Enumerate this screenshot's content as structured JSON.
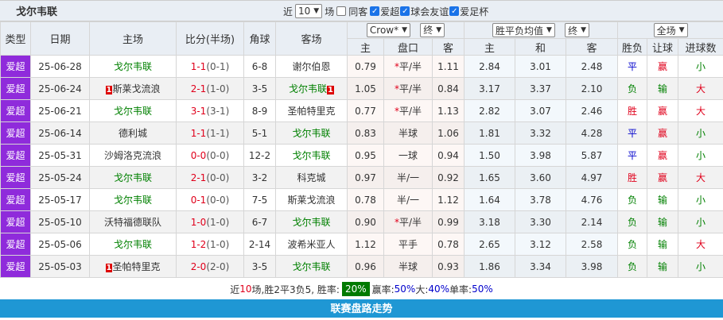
{
  "header": {
    "title": "戈尔韦联",
    "near_label": "近",
    "count": "10",
    "games_label": "场",
    "same_label": "同客",
    "filters": [
      {
        "label": "爱超",
        "checked": true
      },
      {
        "label": "球会友谊",
        "checked": true
      },
      {
        "label": "爱足杯",
        "checked": true
      }
    ]
  },
  "columns": {
    "type": "类型",
    "date": "日期",
    "home": "主场",
    "score": "比分(半场)",
    "corner": "角球",
    "away": "客场",
    "company": "Crow*",
    "odds_phase": "终",
    "avg": "胜平负均值",
    "avg_phase": "终",
    "scope": "全场",
    "ah_home": "主",
    "ah_line": "盘口",
    "ah_away": "客",
    "x_home": "主",
    "x_draw": "和",
    "x_away": "客",
    "result": "胜负",
    "handicap": "让球",
    "goals": "进球数"
  },
  "colors": {
    "type_bg": "#8f2bdb",
    "win": "#e0001b",
    "lose": "#008000",
    "draw": "#0000cc",
    "accent_bar": "#1f97d4"
  },
  "rows": [
    {
      "type": "爱超",
      "date": "25-06-28",
      "home": "戈尔韦联",
      "home_hl": true,
      "home_rank": "",
      "score": "1-1",
      "half": "(0-1)",
      "corner": "6-8",
      "away": "谢尔伯恩",
      "away_hl": false,
      "away_rank": "",
      "o1": "0.79",
      "star": true,
      "line": "平/半",
      "o2": "1.11",
      "x1": "2.84",
      "xd": "3.01",
      "x2": "2.48",
      "res": "平",
      "hc": "赢",
      "gl": "小"
    },
    {
      "type": "爱超",
      "date": "25-06-24",
      "home": "斯莱戈流浪",
      "home_hl": false,
      "home_rank": "1",
      "score": "2-1",
      "half": "(1-0)",
      "corner": "3-5",
      "away": "戈尔韦联",
      "away_hl": true,
      "away_rank": "1",
      "o1": "1.05",
      "star": true,
      "line": "平/半",
      "o2": "0.84",
      "x1": "3.17",
      "xd": "3.37",
      "x2": "2.10",
      "res": "负",
      "hc": "输",
      "gl": "大"
    },
    {
      "type": "爱超",
      "date": "25-06-21",
      "home": "戈尔韦联",
      "home_hl": true,
      "home_rank": "",
      "score": "3-1",
      "half": "(3-1)",
      "corner": "8-9",
      "away": "圣帕特里克",
      "away_hl": false,
      "away_rank": "",
      "o1": "0.77",
      "star": true,
      "line": "平/半",
      "o2": "1.13",
      "x1": "2.82",
      "xd": "3.07",
      "x2": "2.46",
      "res": "胜",
      "hc": "赢",
      "gl": "大"
    },
    {
      "type": "爱超",
      "date": "25-06-14",
      "home": "德利城",
      "home_hl": false,
      "home_rank": "",
      "score": "1-1",
      "half": "(1-1)",
      "corner": "5-1",
      "away": "戈尔韦联",
      "away_hl": true,
      "away_rank": "",
      "o1": "0.83",
      "star": false,
      "line": "半球",
      "o2": "1.06",
      "x1": "1.81",
      "xd": "3.32",
      "x2": "4.28",
      "res": "平",
      "hc": "赢",
      "gl": "小"
    },
    {
      "type": "爱超",
      "date": "25-05-31",
      "home": "沙姆洛克流浪",
      "home_hl": false,
      "home_rank": "",
      "score": "0-0",
      "half": "(0-0)",
      "corner": "12-2",
      "away": "戈尔韦联",
      "away_hl": true,
      "away_rank": "",
      "o1": "0.95",
      "star": false,
      "line": "一球",
      "o2": "0.94",
      "x1": "1.50",
      "xd": "3.98",
      "x2": "5.87",
      "res": "平",
      "hc": "赢",
      "gl": "小"
    },
    {
      "type": "爱超",
      "date": "25-05-24",
      "home": "戈尔韦联",
      "home_hl": true,
      "home_rank": "",
      "score": "2-1",
      "half": "(0-0)",
      "corner": "3-2",
      "away": "科克城",
      "away_hl": false,
      "away_rank": "",
      "o1": "0.97",
      "star": false,
      "line": "半/一",
      "o2": "0.92",
      "x1": "1.65",
      "xd": "3.60",
      "x2": "4.97",
      "res": "胜",
      "hc": "赢",
      "gl": "大"
    },
    {
      "type": "爱超",
      "date": "25-05-17",
      "home": "戈尔韦联",
      "home_hl": true,
      "home_rank": "",
      "score": "0-1",
      "half": "(0-0)",
      "corner": "7-5",
      "away": "斯莱戈流浪",
      "away_hl": false,
      "away_rank": "",
      "o1": "0.78",
      "star": false,
      "line": "半/一",
      "o2": "1.12",
      "x1": "1.64",
      "xd": "3.78",
      "x2": "4.76",
      "res": "负",
      "hc": "输",
      "gl": "小"
    },
    {
      "type": "爱超",
      "date": "25-05-10",
      "home": "沃特福德联队",
      "home_hl": false,
      "home_rank": "",
      "score": "1-0",
      "half": "(1-0)",
      "corner": "6-7",
      "away": "戈尔韦联",
      "away_hl": true,
      "away_rank": "",
      "o1": "0.90",
      "star": true,
      "line": "平/半",
      "o2": "0.99",
      "x1": "3.18",
      "xd": "3.30",
      "x2": "2.14",
      "res": "负",
      "hc": "输",
      "gl": "小"
    },
    {
      "type": "爱超",
      "date": "25-05-06",
      "home": "戈尔韦联",
      "home_hl": true,
      "home_rank": "",
      "score": "1-2",
      "half": "(1-0)",
      "corner": "2-14",
      "away": "波希米亚人",
      "away_hl": false,
      "away_rank": "",
      "o1": "1.12",
      "star": false,
      "line": "平手",
      "o2": "0.78",
      "x1": "2.65",
      "xd": "3.12",
      "x2": "2.58",
      "res": "负",
      "hc": "输",
      "gl": "大"
    },
    {
      "type": "爱超",
      "date": "25-05-03",
      "home": "圣帕特里克",
      "home_hl": false,
      "home_rank": "1",
      "score": "2-0",
      "half": "(2-0)",
      "corner": "3-5",
      "away": "戈尔韦联",
      "away_hl": true,
      "away_rank": "",
      "o1": "0.96",
      "star": false,
      "line": "半球",
      "o2": "0.93",
      "x1": "1.86",
      "xd": "3.34",
      "x2": "3.98",
      "res": "负",
      "hc": "输",
      "gl": "小"
    }
  ],
  "summary": {
    "p1": "近",
    "n": "10",
    "p2": "场,胜2平3负5, 胜率:",
    "win_rate": "20%",
    "p3": "赢率:",
    "hc_rate": "50%",
    "p4": " 大:",
    "big_rate": "40%",
    "p5": " 单率:",
    "odd_rate": "50%"
  },
  "footer": {
    "label": "联赛盘路走势"
  }
}
